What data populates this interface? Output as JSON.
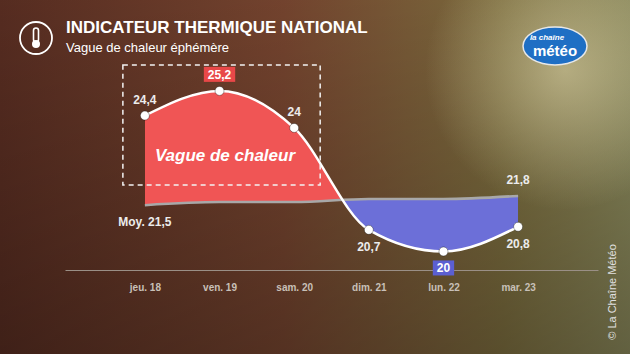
{
  "chart_data": {
    "type": "line",
    "title": "INDICATEUR THERMIQUE NATIONAL",
    "subtitle": "Vague de chaleur éphémère",
    "annotations": [
      "Vague de chaleur"
    ],
    "logo": [
      "la chaîne",
      "météo"
    ],
    "source": "© La Chaîne Météo",
    "categories": [
      "jeu. 18",
      "ven. 19",
      "sam. 20",
      "dim. 21",
      "lun. 22",
      "mar. 23"
    ],
    "series": [
      {
        "values": [
          24.4,
          25.2,
          24,
          20.7,
          20,
          20.8
        ],
        "value_labels": [
          "24,4",
          "25,2",
          "24",
          "20,7",
          "20",
          "20,8"
        ],
        "color": "#ffffff"
      },
      {
        "values": [
          21.5,
          21.6,
          21.6,
          21.7,
          21.7,
          21.8
        ],
        "value_labels": [
          "Moy. 21,5",
          null,
          null,
          null,
          null,
          "21,8"
        ],
        "color": "#a8a8a8"
      }
    ],
    "ylim": [
      19.4,
      26.2
    ],
    "tick_labels": "x",
    "data_labels": true,
    "grid": false
  }
}
